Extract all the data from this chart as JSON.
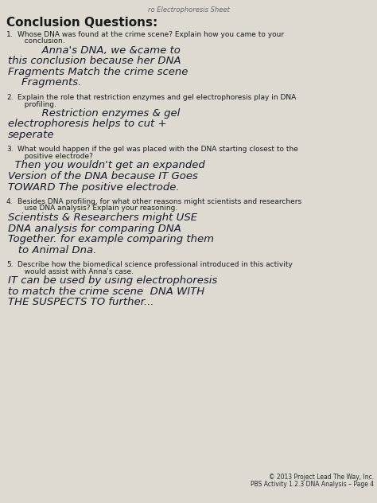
{
  "bg_color": "#c8c4bc",
  "paper_color": "#dedad2",
  "title_top": "ro Electrophoresis Sheet",
  "section_title": "Conclusion Questions:",
  "q_color": "#1a1a1a",
  "a_color": "#1a1a2a",
  "footer_color": "#2a2a2a",
  "questions": [
    {
      "num": "1.",
      "indent": 22,
      "q_lines": [
        "Whose DNA was found at the crime scene? Explain how you came to your",
        "   conclusion."
      ],
      "a_lines": [
        "          Anna's DNA, we &came to",
        "this conclusion because her DNA",
        "Fragments Match the crime scene",
        "    Fragments."
      ]
    },
    {
      "num": "2.",
      "indent": 22,
      "q_lines": [
        "Explain the role that restriction enzymes and gel electrophoresis play in DNA",
        "   profiling."
      ],
      "a_lines": [
        "          Restriction enzymes & gel",
        "electrophoresis helps to cut +",
        "seperate"
      ]
    },
    {
      "num": "3.",
      "indent": 22,
      "q_lines": [
        "What would happen if the gel was placed with the DNA starting closest to the",
        "   positive electrode?"
      ],
      "a_lines": [
        "  Then you wouldn't get an expanded",
        "Version of the DNA because IT Goes",
        "TOWARD The positive electrode."
      ]
    },
    {
      "num": "4.",
      "indent": 22,
      "q_lines": [
        "Besides DNA profiling, for what other reasons might scientists and researchers",
        "   use DNA analysis? Explain your reasoning."
      ],
      "a_lines": [
        "Scientists & Researchers might USE",
        "DNA analysis for comparing DNA",
        "Together. for example comparing them",
        "   to Animal Dna."
      ]
    },
    {
      "num": "5.",
      "indent": 22,
      "q_lines": [
        "Describe how the biomedical science professional introduced in this activity",
        "   would assist with Anna's case."
      ],
      "a_lines": [
        "IT can be used by using electrophoresis",
        "to match the crime scene  DNA WITH",
        "THE SUSPECTS TO further..."
      ]
    }
  ],
  "footer1": "© 2013 Project Lead The Way, Inc.",
  "footer2": "PBS Activity 1.2.3 DNA Analysis – Page 4"
}
